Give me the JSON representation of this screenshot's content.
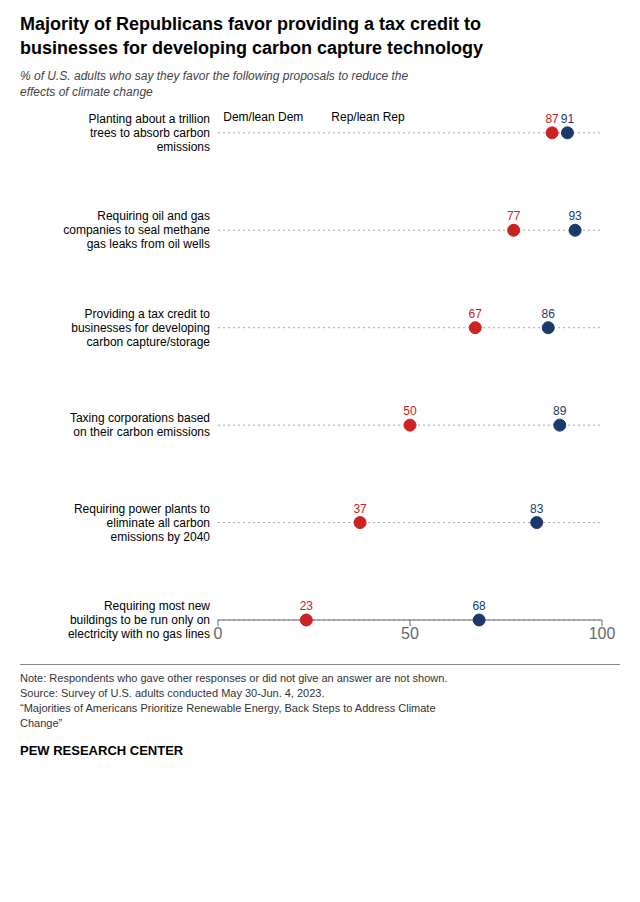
{
  "chart_data": {
    "type": "dot",
    "title": "Majority of Republicans favor providing a tax credit to\nbusinesses for developing carbon capture technology",
    "subtitle": "% of U.S. adults who say they favor the following proposals to reduce the\neffects of climate change",
    "categories": [
      "Planting about a trillion\ntrees to absorb carbon\nemissions",
      "Requiring oil and gas\ncompanies to seal methane\ngas leaks from oil wells",
      "Providing a tax credit to\nbusinesses for developing\ncarbon capture/storage",
      "Taxing corporations based\non their carbon emissions",
      "Requiring power plants to\neliminate all carbon\nemissions by 2040",
      "Requiring most new\nbuildings to be run only on\nelectricity with no gas lines"
    ],
    "series": [
      {
        "name": "Rep/lean Rep",
        "color": "#CC2222",
        "values": [
          87,
          77,
          67,
          50,
          37,
          23
        ]
      },
      {
        "name": "Dem/lean Dem",
        "color": "#1B3A6B",
        "values": [
          91,
          93,
          86,
          89,
          83,
          68
        ]
      }
    ],
    "orientation": "horizontal",
    "xlim": [
      0,
      100
    ],
    "xticks": [
      0,
      50,
      100
    ],
    "grid": true,
    "legend": "top",
    "data_labels": true,
    "notes": [
      "Note: Respondents who gave other responses or did not give an answer are not shown.",
      "Source: Survey of U.S. adults conducted May 30-Jun. 4, 2023.",
      "“Majorities of Americans Prioritize Renewable Energy, Back Steps to Address Climate",
      "Change”"
    ],
    "footer": "PEW RESEARCH CENTER"
  }
}
